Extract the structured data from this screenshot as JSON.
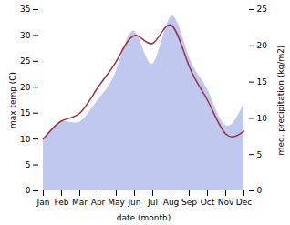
{
  "chart_data": {
    "type": "line",
    "categories": [
      "Jan",
      "Feb",
      "Mar",
      "Apr",
      "May",
      "Jun",
      "Jul",
      "Aug",
      "Sep",
      "Oct",
      "Nov",
      "Dec"
    ],
    "xlabel": "date (month)",
    "ylabel": "max temp (C)",
    "y2label": "med. precipitation (kg/m2)",
    "series": [
      {
        "type": "area",
        "axis": "y2",
        "color": "#c0c8f0",
        "values": [
          7.0,
          9.5,
          9.5,
          12.5,
          16.5,
          22.0,
          17.5,
          24.0,
          18.5,
          14.0,
          9.0,
          12.0
        ]
      },
      {
        "type": "line",
        "color": "#993344",
        "values": [
          10.0,
          13.5,
          15.0,
          20.0,
          25.0,
          30.0,
          28.5,
          32.0,
          24.0,
          17.5,
          11.0,
          11.5
        ]
      }
    ],
    "ylim": [
      0,
      35
    ],
    "yticks": [
      0,
      5,
      10,
      15,
      20,
      25,
      30,
      35
    ],
    "y2lim": [
      0,
      25
    ],
    "y2ticks": [
      0,
      5,
      10,
      15,
      20,
      25
    ]
  }
}
